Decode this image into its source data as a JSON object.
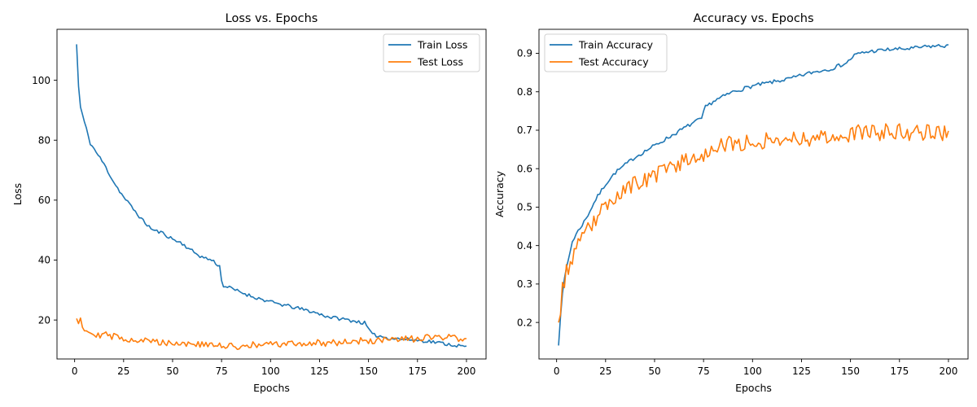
{
  "chart_data": [
    {
      "type": "line",
      "title": "Loss vs. Epochs",
      "xlabel": "Epochs",
      "ylabel": "Loss",
      "xlim": [
        -9,
        210
      ],
      "ylim": [
        7,
        117
      ],
      "xticks": [
        0,
        25,
        50,
        75,
        100,
        125,
        150,
        175,
        200
      ],
      "yticks": [
        20,
        40,
        60,
        80,
        100
      ],
      "grid": false,
      "legend": "upper-right",
      "colors": [
        "#1f77b4",
        "#ff7f0e"
      ],
      "series_keyframes": [
        {
          "name": "Train Loss",
          "x": [
            1,
            2,
            3,
            5,
            8,
            10,
            15,
            20,
            25,
            30,
            35,
            40,
            45,
            50,
            55,
            60,
            65,
            70,
            74,
            75,
            76,
            80,
            90,
            100,
            110,
            120,
            130,
            140,
            148,
            150,
            152,
            155,
            160,
            170,
            180,
            190,
            200
          ],
          "y": [
            112,
            98,
            91,
            86,
            79,
            77,
            72,
            66,
            61,
            57,
            53,
            50,
            49,
            47,
            45.5,
            43,
            41,
            40,
            38,
            33,
            31.5,
            30.5,
            28,
            26,
            24.5,
            23,
            21,
            20,
            19,
            17,
            15,
            14.8,
            14,
            13.5,
            13,
            12,
            11
          ]
        },
        {
          "name": "Test Loss",
          "x": [
            1,
            2,
            3,
            4,
            5,
            8,
            10,
            20,
            30,
            40,
            50,
            60,
            70,
            80,
            90,
            100,
            110,
            120,
            130,
            140,
            150,
            160,
            170,
            180,
            190,
            200
          ],
          "y": [
            20.5,
            19.5,
            21.5,
            18,
            17,
            16,
            15.5,
            14.5,
            13.5,
            12.8,
            12.5,
            12,
            11.5,
            11.2,
            11.5,
            11.8,
            12,
            12.2,
            12.5,
            12.8,
            13,
            13.2,
            13.5,
            14,
            14,
            14
          ]
        }
      ],
      "series_seeds": [
        11,
        29
      ],
      "series_noise": [
        0.6,
        1.2
      ]
    },
    {
      "type": "line",
      "title": "Accuracy vs. Epochs",
      "xlabel": "Epochs",
      "ylabel": "Accuracy",
      "xlim": [
        -9,
        210
      ],
      "ylim": [
        0.105,
        0.9625
      ],
      "xticks": [
        0,
        25,
        50,
        75,
        100,
        125,
        150,
        175,
        200
      ],
      "yticks": [
        0.2,
        0.3,
        0.4,
        0.5,
        0.6,
        0.7,
        0.8,
        0.9
      ],
      "grid": false,
      "legend": "upper-left",
      "colors": [
        "#1f77b4",
        "#ff7f0e"
      ],
      "series_keyframes": [
        {
          "name": "Train Accuracy",
          "x": [
            1,
            2,
            3,
            5,
            8,
            10,
            15,
            20,
            25,
            30,
            40,
            50,
            60,
            70,
            74,
            76,
            80,
            90,
            100,
            110,
            120,
            130,
            140,
            148,
            152,
            155,
            160,
            170,
            180,
            190,
            200
          ],
          "y": [
            0.14,
            0.22,
            0.28,
            0.34,
            0.41,
            0.43,
            0.47,
            0.52,
            0.56,
            0.59,
            0.63,
            0.66,
            0.69,
            0.72,
            0.73,
            0.76,
            0.775,
            0.8,
            0.815,
            0.825,
            0.835,
            0.85,
            0.86,
            0.875,
            0.895,
            0.9,
            0.905,
            0.91,
            0.912,
            0.918,
            0.92
          ]
        },
        {
          "name": "Test Accuracy",
          "x": [
            1,
            2,
            3,
            5,
            8,
            10,
            15,
            20,
            25,
            30,
            40,
            50,
            60,
            70,
            80,
            90,
            100,
            110,
            120,
            130,
            140,
            150,
            160,
            170,
            180,
            190,
            200
          ],
          "y": [
            0.2,
            0.24,
            0.29,
            0.33,
            0.37,
            0.39,
            0.43,
            0.47,
            0.5,
            0.53,
            0.56,
            0.58,
            0.61,
            0.63,
            0.65,
            0.665,
            0.67,
            0.675,
            0.68,
            0.68,
            0.685,
            0.69,
            0.695,
            0.695,
            0.695,
            0.695,
            0.695
          ]
        }
      ],
      "series_seeds": [
        7,
        53
      ],
      "series_noise": [
        0.005,
        0.022
      ]
    }
  ]
}
